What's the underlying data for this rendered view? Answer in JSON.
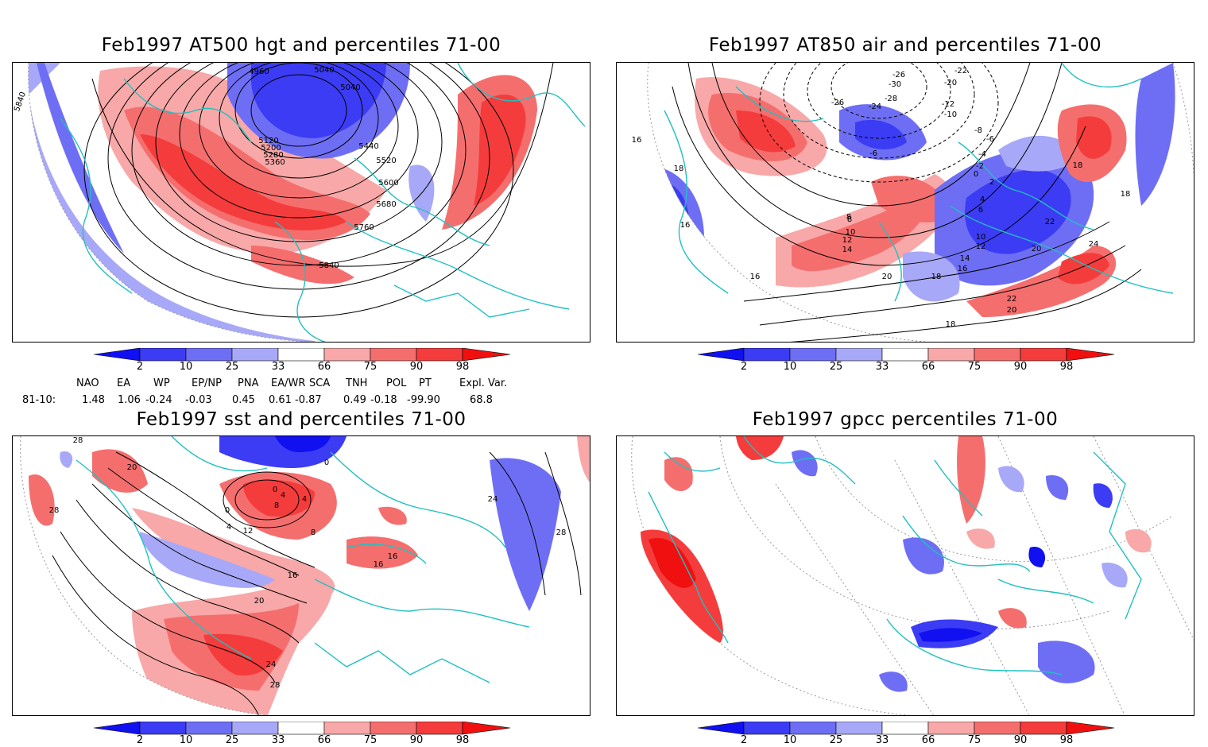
{
  "panels": [
    {
      "title": "Feb1997 AT500 hgt and percentiles 71-00",
      "contour_labels": [
        "4960",
        "5040",
        "5040",
        "5120",
        "5200",
        "5280",
        "5360",
        "5440",
        "5520",
        "5600",
        "5680",
        "5760",
        "5840",
        "5840"
      ]
    },
    {
      "title": "Feb1997 AT850 air and percentiles 71-00",
      "contour_labels": [
        "-26",
        "-30",
        "-28",
        "-24",
        "-26",
        "-22",
        "-20",
        "-12",
        "-10",
        "-8",
        "-6",
        "-6",
        "-4",
        "-2",
        "0",
        "2",
        "4",
        "6",
        "8",
        "10",
        "12",
        "14",
        "16",
        "18",
        "20",
        "22",
        "24",
        "16",
        "18",
        "16",
        "18",
        "16",
        "18",
        "20",
        "22",
        "20",
        "18",
        "14",
        "12",
        "10",
        "8"
      ]
    },
    {
      "title": "Feb1997 sst and percentiles 71-00",
      "contour_labels": [
        "28",
        "28",
        "20",
        "0",
        "4",
        "8",
        "12",
        "16",
        "20",
        "24",
        "28",
        "0",
        "4",
        "4",
        "0",
        "16",
        "24",
        "28",
        "8",
        "16"
      ]
    },
    {
      "title": "Feb1997 gpcc percentiles 71-00",
      "contour_labels": []
    }
  ],
  "colorbar": {
    "ticks": [
      "2",
      "10",
      "25",
      "33",
      "66",
      "75",
      "90",
      "98"
    ],
    "colors": {
      "b1": "#1010f0",
      "b2": "#3c3cf5",
      "b3": "#6e6ef5",
      "b4": "#a8a8f8",
      "r1": "#f8a8a8",
      "r2": "#f56e6e",
      "r3": "#f53c3c",
      "r4": "#f01010"
    }
  },
  "indices": {
    "headers": [
      "NAO",
      "EA",
      "WP",
      "EP/NP",
      "PNA",
      "EA/WR",
      "SCA",
      "TNH",
      "POL",
      "PT",
      "Expl. Var."
    ],
    "row_label": "81-10:",
    "values": [
      "1.48",
      "1.06",
      "-0.24",
      "-0.03",
      "0.45",
      "0.61",
      "-0.87",
      "0.49",
      "-0.18",
      "-99.90",
      "68.8"
    ]
  },
  "map_colors": {
    "coast": "#20c0c0",
    "contour": "#000000",
    "grid": "#999999"
  }
}
